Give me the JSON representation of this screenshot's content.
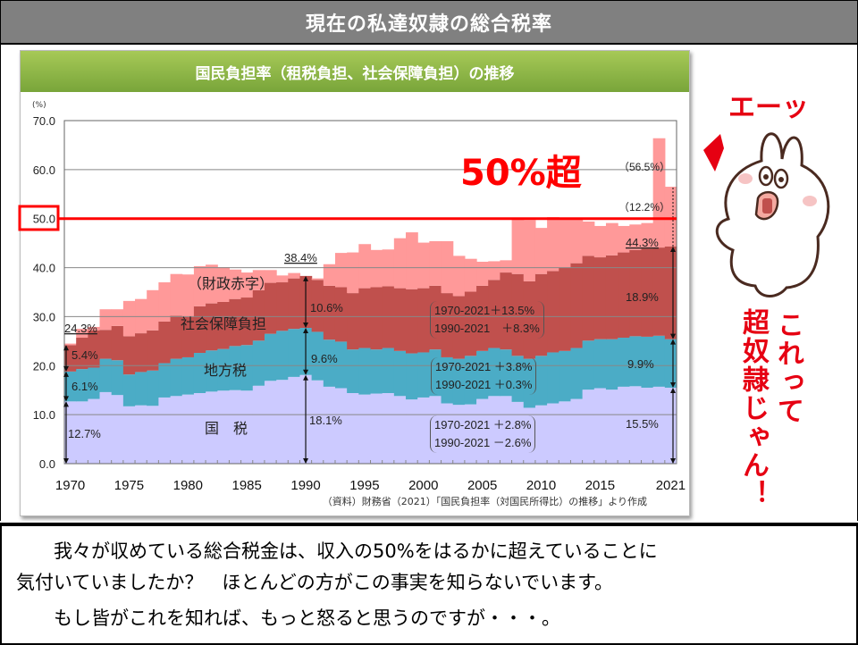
{
  "slide_title": "現在の私達奴隷の総合税率",
  "chart_panel_title": "国民負担率（租税負担、社会保障負担）の推移",
  "chart_data": {
    "type": "area",
    "stacked": true,
    "step": true,
    "title": "国民負担率（租税負担、社会保障負担）の推移",
    "ylabel": "(%)",
    "ylim": [
      0,
      70
    ],
    "yticks": [
      "0.0",
      "10.0",
      "20.0",
      "30.0",
      "40.0",
      "50.0",
      "60.0",
      "70.0"
    ],
    "xticks": [
      "1970",
      "1975",
      "1980",
      "1985",
      "1990",
      "1995",
      "2000",
      "2005",
      "2010",
      "2015",
      "2021"
    ],
    "grid": true,
    "years": [
      1970,
      1971,
      1972,
      1973,
      1974,
      1975,
      1976,
      1977,
      1978,
      1979,
      1980,
      1981,
      1982,
      1983,
      1984,
      1985,
      1986,
      1987,
      1988,
      1989,
      1990,
      1991,
      1992,
      1993,
      1994,
      1995,
      1996,
      1997,
      1998,
      1999,
      2000,
      2001,
      2002,
      2003,
      2004,
      2005,
      2006,
      2007,
      2008,
      2009,
      2010,
      2011,
      2012,
      2013,
      2014,
      2015,
      2016,
      2017,
      2018,
      2019,
      2020,
      2021
    ],
    "series": [
      {
        "name": "国　税",
        "color": "#cccaff",
        "values": [
          12.7,
          12.7,
          13.2,
          14.6,
          14.0,
          11.7,
          11.9,
          11.8,
          13.5,
          13.8,
          14.1,
          14.4,
          14.7,
          14.9,
          15.0,
          14.9,
          15.9,
          16.9,
          17.1,
          17.7,
          18.1,
          17.0,
          15.7,
          15.4,
          14.4,
          14.1,
          14.3,
          14.4,
          13.8,
          13.1,
          13.5,
          13.8,
          12.3,
          12.0,
          12.1,
          13.2,
          13.8,
          13.8,
          12.6,
          11.4,
          11.9,
          12.3,
          12.7,
          13.2,
          15.1,
          15.4,
          15.1,
          15.7,
          15.8,
          15.5,
          15.7,
          15.5
        ]
      },
      {
        "name": "地方税",
        "color": "#4bacc6",
        "values": [
          6.1,
          6.6,
          6.4,
          6.8,
          7.1,
          6.5,
          6.8,
          7.2,
          7.0,
          7.6,
          7.6,
          8.2,
          8.4,
          8.5,
          9.0,
          9.3,
          9.2,
          9.6,
          10.0,
          9.8,
          9.6,
          9.9,
          9.6,
          9.5,
          8.9,
          9.5,
          9.0,
          9.2,
          9.2,
          9.4,
          9.2,
          9.5,
          9.4,
          9.4,
          9.9,
          9.8,
          9.8,
          9.5,
          9.4,
          10.0,
          10.1,
          10.4,
          10.3,
          10.4,
          10.0,
          10.0,
          10.3,
          10.0,
          10.2,
          10.4,
          10.4,
          9.9
        ]
      },
      {
        "name": "社会保障負担",
        "color": "#c0504d",
        "values": [
          5.4,
          6.4,
          7.6,
          5.9,
          7.0,
          7.8,
          7.9,
          8.2,
          8.5,
          8.8,
          8.2,
          9.5,
          9.6,
          9.6,
          9.6,
          9.7,
          10.3,
          10.4,
          9.9,
          10.3,
          10.6,
          10.6,
          11.0,
          11.1,
          11.5,
          12.2,
          12.7,
          12.6,
          12.8,
          13.1,
          13.1,
          13.0,
          13.1,
          12.8,
          13.1,
          13.3,
          13.9,
          15.7,
          16.7,
          15.8,
          16.7,
          16.6,
          17.0,
          17.3,
          17.3,
          16.7,
          17.1,
          17.4,
          17.6,
          18.0,
          18.0,
          18.9
        ]
      },
      {
        "name": "（財政赤字）",
        "color": "#ff9999",
        "values": [
          0.3,
          1.8,
          0.7,
          4.2,
          3.4,
          7.2,
          7.0,
          8.2,
          8.0,
          8.5,
          8.7,
          8.2,
          7.9,
          7.1,
          6.0,
          5.1,
          4.1,
          2.6,
          1.4,
          1.1,
          0.0,
          0.3,
          4.4,
          7.0,
          8.3,
          9.0,
          7.6,
          7.5,
          10.2,
          11.6,
          9.3,
          9.1,
          10.6,
          8.2,
          6.7,
          4.9,
          3.8,
          2.5,
          11.1,
          12.5,
          9.4,
          11.0,
          10.2,
          9.3,
          7.0,
          6.4,
          6.6,
          5.4,
          5.2,
          5.2,
          22.3,
          12.2
        ]
      }
    ],
    "annotations": {
      "y1970_total": "24.3%",
      "y1970_ss": "5.4%",
      "y1970_local": "6.1%",
      "y1970_national": "12.7%",
      "y1990_total": "38.4%",
      "y1990_ss": "10.6%",
      "y1990_local": "9.6%",
      "y1990_national": "18.1%",
      "y2021_total_with_deficit": "（56.5%）",
      "y2021_deficit": "（12.2%）",
      "y2021_total": "44.3%",
      "y2021_ss": "18.9%",
      "y2021_local": "9.9%",
      "y2021_national": "15.5%",
      "ss_change": "1970-2021＋13.5%\n1990-2021　＋8.3%",
      "local_change": "1970-2021 ＋3.8%\n1990-2021 ＋0.3%",
      "national_change": "1970-2021 ＋2.8%\n1990-2021 －2.6%",
      "label_deficit": "（財政赤字）",
      "label_ss": "社会保障負担",
      "label_local": "地方税",
      "label_national": "国　税"
    },
    "highlight_line": {
      "value": 50,
      "color": "#ff0000",
      "label": "50%超"
    },
    "source": "（資料）財務省（2021）「国民負担率（対国民所得比）の推移」より作成"
  },
  "character": {
    "exclaim": "エーッ",
    "caption_line1": "これって",
    "caption_line2": "超奴隷じゃん！"
  },
  "body_text": {
    "line1": "我々が収めている総合税金は、収入の50%をはるかに超えていることに",
    "line2": "気付いていましたか？　ほとんどの方がこの事実を知らないでいます。",
    "line3": "もし皆がこれを知れば、もっと怒ると思うのですが・・・。"
  },
  "colors": {
    "accent_red": "#e60012",
    "header_green": "#8db646",
    "title_gray": "#808080"
  }
}
